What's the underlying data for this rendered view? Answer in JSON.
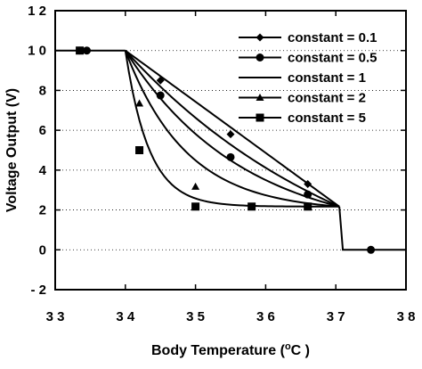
{
  "chart_data": {
    "type": "line",
    "xlabel_main": "Body Temperature (",
    "xlabel_unit": "C )",
    "degree_symbol": "o",
    "ylabel": "Voltage Output (V)",
    "xlim": [
      33,
      38
    ],
    "ylim": [
      -2,
      12
    ],
    "x_ticks": [
      33,
      34,
      35,
      36,
      37,
      38
    ],
    "x_tick_labels": [
      "3 3",
      "3 4",
      "3 5",
      "3 6",
      "3 7",
      "3 8"
    ],
    "y_ticks": [
      -2,
      0,
      2,
      4,
      6,
      8,
      10,
      12
    ],
    "y_tick_labels": [
      "- 2",
      "0",
      "2",
      "4",
      "6",
      "8",
      "1 0",
      "1 2"
    ],
    "grid": "horizontal-dotted",
    "legend_position": "top-right",
    "series": [
      {
        "name": "constant = 0.1",
        "marker": "diamond",
        "x": [
          33,
          33.5,
          34,
          34.2,
          34.4,
          34.6,
          34.8,
          35,
          35.2,
          35.4,
          35.6,
          35.8,
          36,
          36.2,
          36.4,
          36.6,
          36.8,
          37,
          37.05,
          37.1,
          37.5,
          38
        ],
        "y": [
          10,
          10,
          10,
          9.48,
          8.93,
          8.36,
          7.78,
          7.19,
          6.59,
          5.98,
          5.37,
          4.76,
          4.14,
          3.51,
          2.89,
          2.27,
          1.64,
          1.02,
          1.0,
          0,
          0,
          0
        ],
        "markers_x": [
          33.35,
          34.5,
          35.5,
          36.6
        ],
        "markers_y": [
          10,
          8.5,
          5.8,
          3.3
        ]
      },
      {
        "name": "constant = 0.5",
        "marker": "circle",
        "x": [
          33.45,
          34.5,
          35.5,
          36.6,
          37.5
        ],
        "y": [
          10,
          7.75,
          4.65,
          2.78,
          0
        ]
      },
      {
        "name": "constant = 1",
        "marker": "none"
      },
      {
        "name": "constant = 2",
        "marker": "triangle",
        "x": [
          34.2,
          35
        ],
        "y": [
          7.35,
          3.17
        ]
      },
      {
        "name": "constant = 5",
        "marker": "square",
        "x": [
          33.35,
          34.2,
          35,
          35.8,
          36.6
        ],
        "y": [
          10,
          5.0,
          2.17,
          2.17,
          2.17
        ]
      }
    ]
  }
}
